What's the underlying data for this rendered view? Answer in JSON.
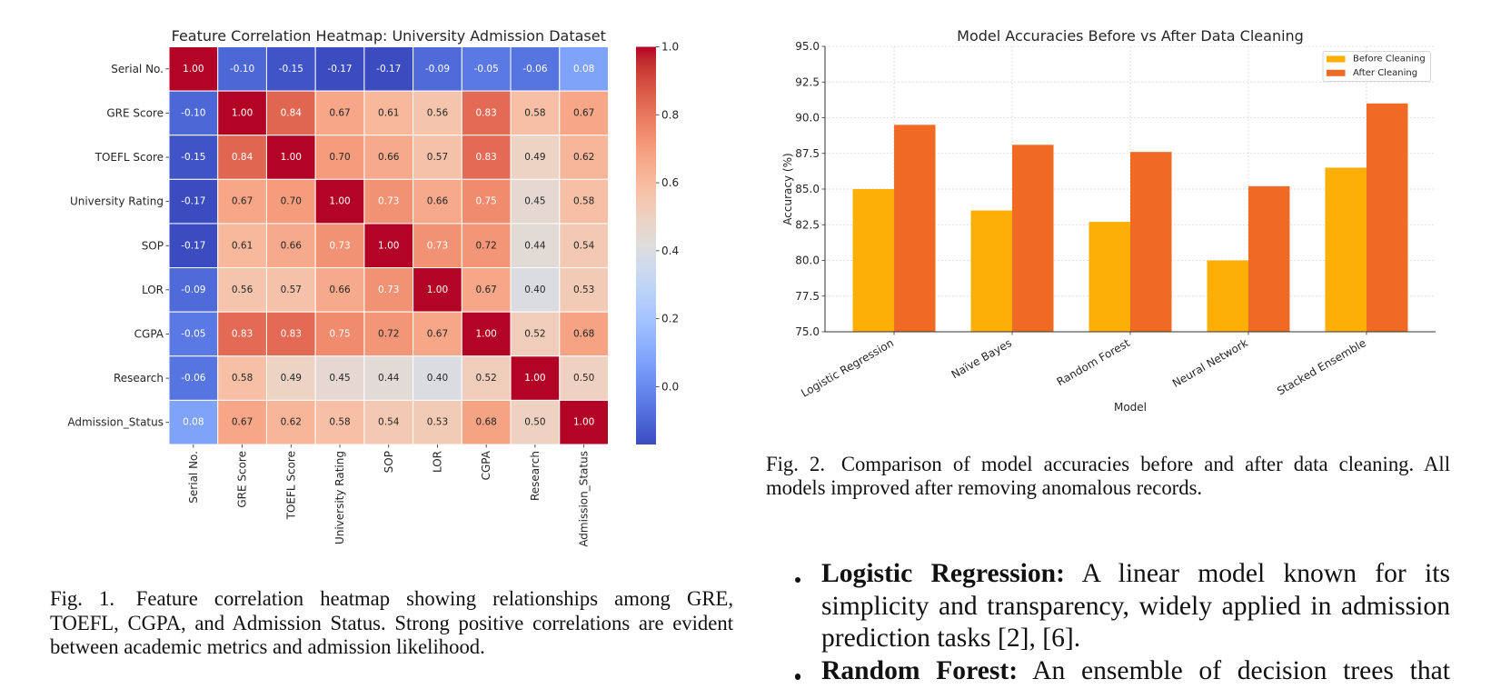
{
  "figure1": {
    "caption": {
      "label": "Fig. 1.",
      "lines": [
        "Feature correlation heatmap showing relationships among GRE,",
        "TOEFL, CGPA, and Admission Status. Strong positive correlations are evident",
        "between academic metrics and admission likelihood."
      ]
    }
  },
  "figure2": {
    "caption": {
      "label": "Fig. 2.",
      "lines": [
        "Comparison of model accuracies before and after data cleaning. All",
        "models improved after removing anomalous records."
      ]
    }
  },
  "body": {
    "bullets": [
      {
        "term": "Logistic Regression:",
        "lines": [
          "A linear model known for its",
          "simplicity and transparency, widely applied in admission",
          "prediction tasks [2], [6]."
        ]
      },
      {
        "term": "Random Forest:",
        "lines": [
          "An ensemble of decision trees that"
        ]
      }
    ]
  },
  "chart_data": [
    {
      "type": "heatmap",
      "title": "Feature Correlation Heatmap: University Admission Dataset",
      "rows": [
        "Serial No.",
        "GRE Score",
        "TOEFL Score",
        "University Rating",
        "SOP",
        "LOR",
        "CGPA",
        "Research",
        "Admission_Status"
      ],
      "columns": [
        "Serial No.",
        "GRE Score",
        "TOEFL Score",
        "University Rating",
        "SOP",
        "LOR",
        "CGPA",
        "Research",
        "Admission_Status"
      ],
      "values": [
        [
          1.0,
          -0.1,
          -0.15,
          -0.17,
          -0.17,
          -0.09,
          -0.05,
          -0.06,
          0.08
        ],
        [
          -0.1,
          1.0,
          0.84,
          0.67,
          0.61,
          0.56,
          0.83,
          0.58,
          0.67
        ],
        [
          -0.15,
          0.84,
          1.0,
          0.7,
          0.66,
          0.57,
          0.83,
          0.49,
          0.62
        ],
        [
          -0.17,
          0.67,
          0.7,
          1.0,
          0.73,
          0.66,
          0.75,
          0.45,
          0.58
        ],
        [
          -0.17,
          0.61,
          0.66,
          0.73,
          1.0,
          0.73,
          0.72,
          0.44,
          0.54
        ],
        [
          -0.09,
          0.56,
          0.57,
          0.66,
          0.73,
          1.0,
          0.67,
          0.4,
          0.53
        ],
        [
          -0.05,
          0.83,
          0.83,
          0.75,
          0.72,
          0.67,
          1.0,
          0.52,
          0.68
        ],
        [
          -0.06,
          0.58,
          0.49,
          0.45,
          0.44,
          0.4,
          0.52,
          1.0,
          0.5
        ],
        [
          0.08,
          0.67,
          0.62,
          0.58,
          0.54,
          0.53,
          0.68,
          0.5,
          1.0
        ]
      ],
      "colormap": "coolwarm",
      "annotation_decimals": 2,
      "colorbar": {
        "min": -0.17,
        "max": 1.0,
        "ticks": [
          0.0,
          0.2,
          0.4,
          0.6,
          0.8,
          1.0
        ]
      }
    },
    {
      "type": "bar",
      "title": "Model Accuracies Before vs After Data Cleaning",
      "categories": [
        "Logistic Regression",
        "Naïve Bayes",
        "Random Forest",
        "Neural Network",
        "Stacked Ensemble"
      ],
      "series": [
        {
          "name": "Before Cleaning",
          "values": [
            85.0,
            83.5,
            82.7,
            80.0,
            86.5
          ],
          "color": "#FDAF06"
        },
        {
          "name": "After Cleaning",
          "values": [
            89.5,
            88.1,
            87.6,
            85.2,
            91.0
          ],
          "color": "#F06A23"
        }
      ],
      "xlabel": "Model",
      "ylabel": "Accuracy (%)",
      "ylim": [
        75.0,
        95.0
      ],
      "yticks": [
        75.0,
        77.5,
        80.0,
        82.5,
        85.0,
        87.5,
        90.0,
        92.5,
        95.0
      ],
      "grid": true,
      "legend": "upper right"
    }
  ]
}
